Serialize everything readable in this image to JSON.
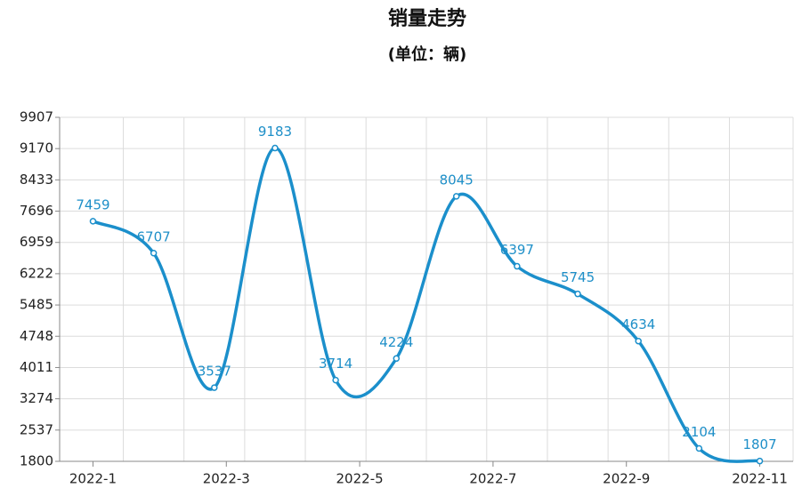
{
  "chart_data": {
    "type": "line",
    "title": "销量走势",
    "subtitle": "(单位：辆)",
    "x": [
      1,
      1.91,
      2.82,
      3.73,
      4.64,
      5.55,
      6.45,
      7.36,
      8.27,
      9.18,
      10.09,
      11
    ],
    "values": [
      7459,
      6707,
      3537,
      9183,
      3714,
      4224,
      8045,
      6397,
      5745,
      4634,
      2104,
      1807
    ],
    "color": "#1b8fcb",
    "xlim": [
      0.5,
      11.5
    ],
    "xticks": [
      {
        "value": 1,
        "label": "2022-1"
      },
      {
        "value": 3,
        "label": "2022-3"
      },
      {
        "value": 5,
        "label": "2022-5"
      },
      {
        "value": 7,
        "label": "2022-7"
      },
      {
        "value": 9,
        "label": "2022-9"
      },
      {
        "value": 11,
        "label": "2022-11"
      }
    ],
    "ylim": [
      1800,
      9907
    ],
    "yticks": [
      1800,
      2537,
      3274,
      4011,
      4748,
      5485,
      6222,
      6959,
      7696,
      8433,
      9170,
      9907
    ],
    "grid": true,
    "smooth": true
  }
}
